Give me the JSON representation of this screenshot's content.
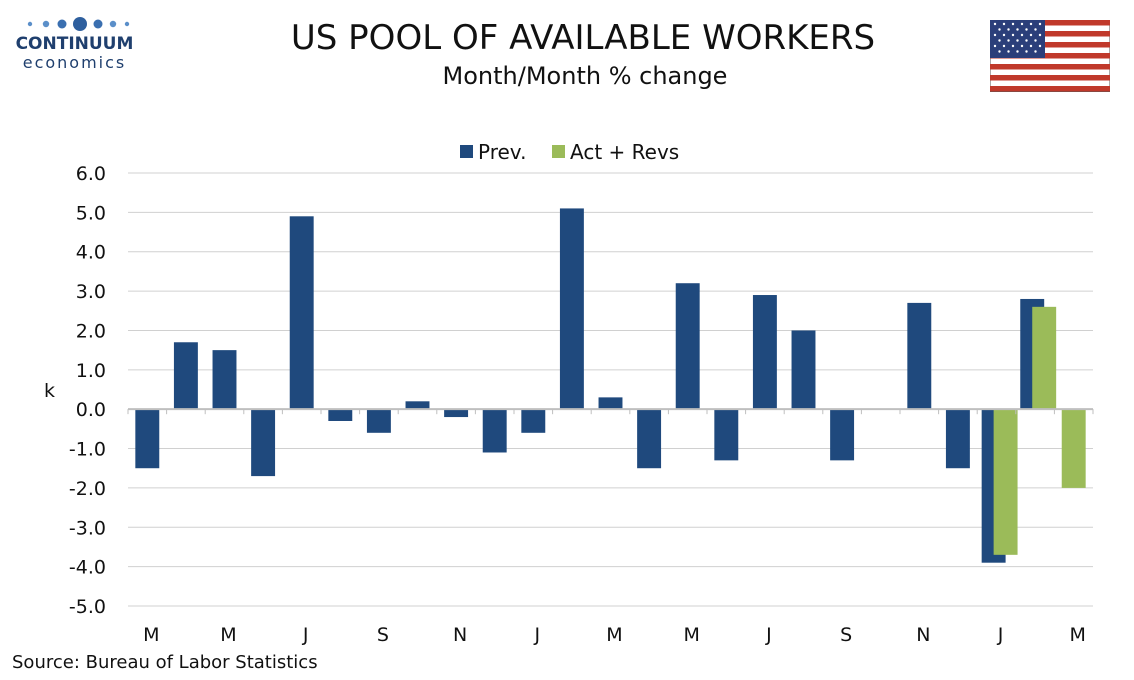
{
  "header": {
    "logo_name": "CONTINUUM",
    "logo_sub": "economics",
    "title": "US POOL OF AVAILABLE WORKERS",
    "subtitle": "Month/Month % change"
  },
  "footer": {
    "source": "Source: Bureau of Labor Statistics"
  },
  "colors": {
    "prev": "#1f497d",
    "act": "#9bbb59",
    "grid": "#d0d0d0",
    "axis": "#bfbfbf"
  },
  "chart_data": {
    "type": "bar",
    "title": "US POOL OF AVAILABLE WORKERS",
    "subtitle": "Month/Month % change",
    "ylabel": "k",
    "xlabel": "",
    "ylim": [
      -5,
      6
    ],
    "yticks": [
      "6.0",
      "5.0",
      "4.0",
      "3.0",
      "2.0",
      "1.0",
      "0.0",
      "-1.0",
      "-2.0",
      "-3.0",
      "-4.0",
      "-5.0"
    ],
    "grid": true,
    "legend_position": "top-center",
    "xtick_labels": [
      "M",
      "M",
      "J",
      "S",
      "N",
      "J",
      "M",
      "M",
      "J",
      "S",
      "N",
      "J",
      "M"
    ],
    "series": [
      {
        "name": "Prev.",
        "values": [
          -1.5,
          1.7,
          1.5,
          -1.7,
          4.9,
          -0.3,
          -0.6,
          0.2,
          -0.2,
          -1.1,
          -0.6,
          5.1,
          0.3,
          -1.5,
          3.2,
          -1.3,
          2.9,
          2.0,
          -1.3,
          null,
          2.7,
          -1.5,
          -3.9,
          2.8,
          null
        ]
      },
      {
        "name": "Act + Revs",
        "values": [
          null,
          null,
          null,
          null,
          null,
          null,
          null,
          null,
          null,
          null,
          null,
          null,
          null,
          null,
          null,
          null,
          null,
          null,
          null,
          null,
          null,
          null,
          -3.7,
          2.6,
          -2.0
        ]
      }
    ]
  }
}
